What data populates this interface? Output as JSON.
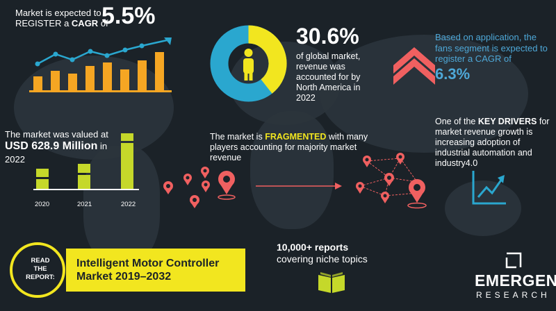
{
  "cagr_block": {
    "line1": "Market is expected to",
    "line2_pre": "REGISTER a ",
    "line2_bold": "CAGR",
    "line2_post": " of",
    "value": "5.5%"
  },
  "share_block": {
    "value": "30.6%",
    "lines": [
      "of global market,",
      "revenue was",
      "accounted for by",
      "North America in",
      "2022"
    ],
    "donut_fraction": 0.306
  },
  "application_block": {
    "lines": [
      "Based on application, the",
      "fans segment is expected to",
      "register a CAGR of"
    ],
    "value": "6.3%"
  },
  "valuation_block": {
    "line1": "The market was valued at",
    "value": "USD 628.9 Million",
    "value_suffix": " in",
    "year": "2022",
    "bars": [
      {
        "label": "2020"
      },
      {
        "label": "2021"
      },
      {
        "label": "2022"
      }
    ]
  },
  "fragmented_block": {
    "pre": "The market is ",
    "highlight": "FRAGMENTED",
    "post_lines": [
      " with many",
      "players accounting for majority market",
      "revenue"
    ]
  },
  "drivers_block": {
    "pre": "One of the ",
    "bold": "KEY DRIVERS",
    "post_lines": [
      " for",
      "market revenue growth is",
      "increasing adoption of",
      "industrial automation and",
      "industry4.0"
    ]
  },
  "reports_block": {
    "line1": "10,000+ reports",
    "line2": "covering niche topics"
  },
  "read_report": {
    "circle_lines": [
      "READ",
      "THE",
      "REPORT:"
    ],
    "title_line1": "Intelligent Motor Controller",
    "title_line2": "Market 2019–2032"
  },
  "brand": {
    "name": "EMERGEN",
    "sub": "RESEARCH"
  },
  "colors": {
    "background": "#1b2228",
    "accent_yellow": "#f2e61f",
    "accent_lime": "#c5d82a",
    "accent_orange": "#f5a623",
    "accent_blue": "#2aa7cf",
    "accent_coral": "#f06060",
    "text_blue": "#4ea8d8"
  },
  "icons": [
    "bar-chart-icon",
    "donut-chart-icon",
    "person-icon",
    "double-chevron-up-icon",
    "location-pin-icon",
    "trend-chart-icon",
    "book-icon",
    "logo-icon"
  ]
}
